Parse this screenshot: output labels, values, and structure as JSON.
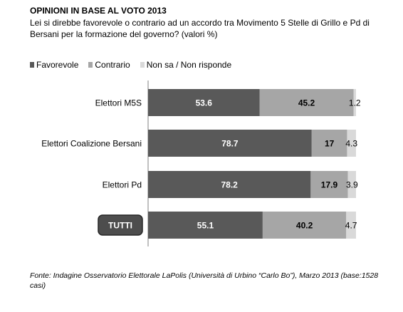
{
  "title": "OPINIONI IN BASE AL VOTO 2013",
  "subtitle": "Lei si direbbe favorevole o contrario ad un accordo tra Movimento 5 Stelle di Grillo e Pd di Bersani per la formazione del governo? (valori %)",
  "footnote": "Fonte: Indagine Osservatorio Elettorale LaPolis (Università di Urbino “Carlo Bo”), Marzo 2013 (base:1528 casi)",
  "chart_data": {
    "type": "bar",
    "orientation": "horizontal",
    "stacked": true,
    "categories": [
      "Elettori M5S",
      "Elettori Coalizione Bersani",
      "Elettori Pd",
      "TUTTI"
    ],
    "series": [
      {
        "name": "Favorevole",
        "color": "#595959",
        "values": [
          53.6,
          78.7,
          78.2,
          55.1
        ],
        "labels": [
          "53.6",
          "78.7",
          "78.2",
          "55.1"
        ]
      },
      {
        "name": "Contrario",
        "color": "#a6a6a6",
        "values": [
          45.2,
          17,
          17.9,
          40.2
        ],
        "labels": [
          "45.2",
          "17",
          "17.9",
          "40.2"
        ]
      },
      {
        "name": "Non sa / Non risponde",
        "color": "#d9d9d9",
        "values": [
          1.2,
          4.3,
          3.9,
          4.7
        ],
        "labels": [
          "1.2",
          "4.3",
          "3.9",
          "4.7"
        ]
      }
    ],
    "xlim": [
      0,
      100
    ],
    "grid": false,
    "legend_position": "top-left",
    "highlighted_category": "TUTTI"
  }
}
